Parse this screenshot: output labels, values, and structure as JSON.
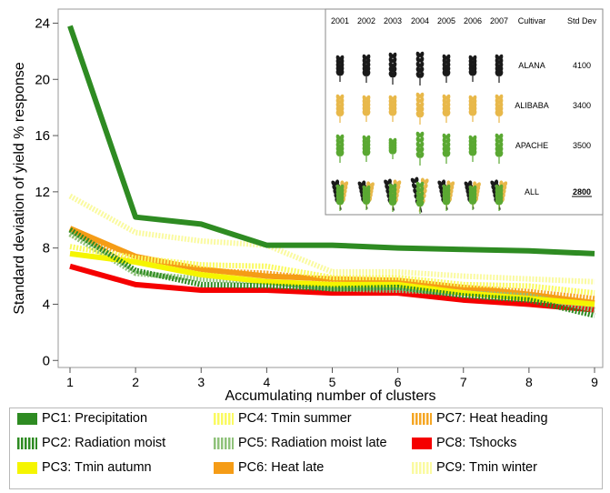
{
  "chart_data": {
    "type": "line",
    "xlabel": "Accumulating number of clusters",
    "ylabel": "Standard deviation of yield % response",
    "x": [
      1,
      2,
      3,
      4,
      5,
      6,
      7,
      8,
      9
    ],
    "xlim": [
      1,
      9
    ],
    "ylim": [
      -0.5,
      25
    ],
    "yticks": [
      0,
      4,
      8,
      12,
      16,
      20,
      24
    ],
    "grid": false,
    "legend_position": "bottom",
    "series": [
      {
        "name": "PC1: Precipitation",
        "color": "#2e8b22",
        "pattern": "solid",
        "values": [
          23.8,
          10.2,
          9.7,
          8.2,
          8.2,
          8.0,
          7.9,
          7.8,
          7.6
        ]
      },
      {
        "name": "PC2: Radiation moist",
        "color": "#2e8b22",
        "pattern": "dash",
        "values": [
          9.3,
          6.4,
          5.4,
          5.3,
          5.1,
          5.2,
          4.6,
          4.3,
          3.2
        ]
      },
      {
        "name": "PC3: Tmin autumn",
        "color": "#f5f500",
        "pattern": "solid",
        "values": [
          7.6,
          7.0,
          6.1,
          5.6,
          5.4,
          5.4,
          4.8,
          4.4,
          4.0
        ]
      },
      {
        "name": "PC4: Tmin summer",
        "color": "#fafa60",
        "pattern": "dash",
        "values": [
          8.1,
          7.3,
          6.8,
          6.7,
          5.9,
          5.9,
          5.4,
          5.3,
          4.8
        ]
      },
      {
        "name": "PC5: Radiation moist late",
        "color": "#8fc27a",
        "pattern": "dash",
        "values": [
          9.0,
          6.2,
          5.8,
          5.6,
          5.1,
          5.0,
          4.8,
          4.6,
          3.6
        ]
      },
      {
        "name": "PC6: Heat late",
        "color": "#f59c16",
        "pattern": "solid",
        "values": [
          9.4,
          7.4,
          6.5,
          6.0,
          5.8,
          5.7,
          5.2,
          4.7,
          4.1
        ]
      },
      {
        "name": "PC7: Heat heading",
        "color": "#f5a623",
        "pattern": "dash",
        "values": [
          9.0,
          7.0,
          6.4,
          6.2,
          5.7,
          5.6,
          5.2,
          4.9,
          4.4
        ]
      },
      {
        "name": "PC8: Tshocks",
        "color": "#f50000",
        "pattern": "solid",
        "values": [
          6.7,
          5.4,
          5.0,
          5.0,
          4.8,
          4.8,
          4.3,
          4.0,
          3.6
        ]
      },
      {
        "name": "PC9: Tmin winter",
        "color": "#fafaa0",
        "pattern": "dash",
        "values": [
          11.7,
          9.1,
          8.5,
          8.2,
          6.3,
          6.3,
          6.0,
          5.8,
          5.6
        ]
      }
    ],
    "inset": {
      "years": [
        "2001",
        "2002",
        "2003",
        "2004",
        "2005",
        "2006",
        "2007"
      ],
      "cultivar_header": "Cultivar",
      "std_header": "Std Dev",
      "rows": [
        {
          "cultivar": "ALANA",
          "std": "4100",
          "color": "#1a1a1a"
        },
        {
          "cultivar": "ALIBABA",
          "std": "3400",
          "color": "#e8b84a"
        },
        {
          "cultivar": "APACHE",
          "std": "3500",
          "color": "#5aa832"
        },
        {
          "cultivar": "ALL",
          "std": "2800",
          "color": "mixed"
        }
      ]
    }
  }
}
